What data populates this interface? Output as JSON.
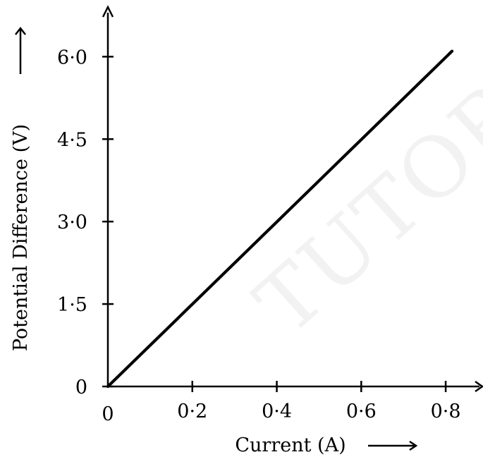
{
  "chart_data": {
    "type": "line",
    "xlabel": "Current (A)",
    "ylabel": "Potential Difference (V)",
    "x_ticks": [
      "0·2",
      "0·4",
      "0·6",
      "0·8"
    ],
    "y_ticks": [
      "0",
      "1·5",
      "3·0",
      "4·5",
      "6·0"
    ],
    "origin_label": "0",
    "xlim": [
      0,
      0.88
    ],
    "ylim": [
      0,
      6.8
    ],
    "grid": false,
    "series": [
      {
        "x": [
          0,
          0.815
        ],
        "y": [
          0,
          6.1
        ]
      }
    ]
  },
  "watermark": "TUTORIAL",
  "colors": {
    "line": "#000000",
    "axes": "#000000",
    "watermark": "#d9d9d9"
  }
}
